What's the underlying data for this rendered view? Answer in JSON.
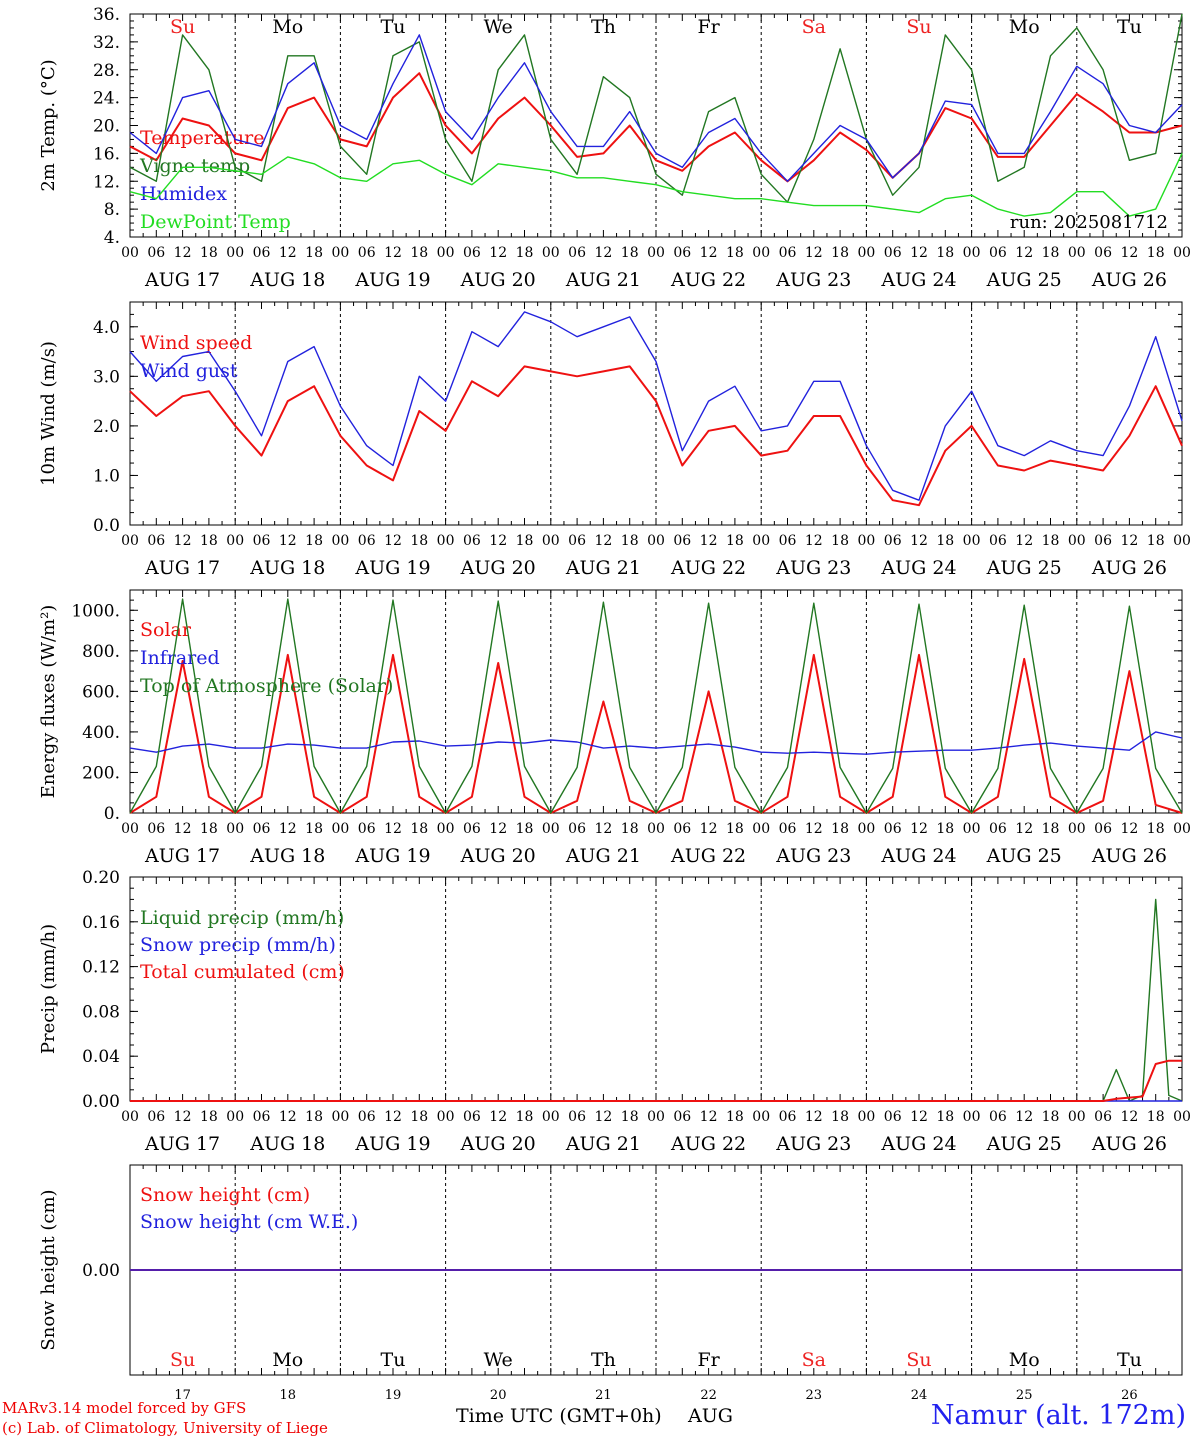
{
  "colors": {
    "red": "#ee1111",
    "green": "#227722",
    "blue": "#2222dd",
    "lightgreen": "#22dd22",
    "weekend": "#ee2222",
    "weekday": "#000000"
  },
  "days": [
    {
      "weekday": "Su",
      "date": "AUG 17",
      "daynum": "17",
      "weekend": true
    },
    {
      "weekday": "Mo",
      "date": "AUG 18",
      "daynum": "18",
      "weekend": false
    },
    {
      "weekday": "Tu",
      "date": "AUG 19",
      "daynum": "19",
      "weekend": false
    },
    {
      "weekday": "We",
      "date": "AUG 20",
      "daynum": "20",
      "weekend": false
    },
    {
      "weekday": "Th",
      "date": "AUG 21",
      "daynum": "21",
      "weekend": false
    },
    {
      "weekday": "Fr",
      "date": "AUG 22",
      "daynum": "22",
      "weekend": false
    },
    {
      "weekday": "Sa",
      "date": "AUG 23",
      "daynum": "23",
      "weekend": true
    },
    {
      "weekday": "Su",
      "date": "AUG 24",
      "daynum": "24",
      "weekend": true
    },
    {
      "weekday": "Mo",
      "date": "AUG 25",
      "daynum": "25",
      "weekend": false
    },
    {
      "weekday": "Tu",
      "date": "AUG 26",
      "daynum": "26",
      "weekend": false
    }
  ],
  "hour_ticks": [
    "00",
    "06",
    "12",
    "18"
  ],
  "final_hour_tick": "00",
  "footer": {
    "credit_line1": "MARv3.14 model forced by GFS",
    "credit_line2": "(c) Lab. of Climatology, University of Liege",
    "time_label": "Time UTC (GMT+0h)",
    "month": "AUG",
    "station": "Namur (alt. 172m)"
  },
  "chart_data": [
    {
      "type": "line",
      "ylabel": "2m Temp. (°C)",
      "ylim": [
        4,
        36
      ],
      "yticks": [
        "4.",
        "8.",
        "12.",
        "16.",
        "20.",
        "24.",
        "28.",
        "32.",
        "36."
      ],
      "annotation": "run: 2025081712",
      "x": [
        0,
        6,
        12,
        18,
        24,
        30,
        36,
        42,
        48,
        54,
        60,
        66,
        72,
        78,
        84,
        90,
        96,
        102,
        108,
        114,
        120,
        126,
        132,
        138,
        144,
        150,
        156,
        162,
        168,
        174,
        180,
        186,
        192,
        198,
        204,
        210,
        216,
        222,
        228,
        234,
        240
      ],
      "series": [
        {
          "name": "Temperature",
          "color": "red",
          "values": [
            17,
            15,
            21,
            20,
            16,
            15,
            22.5,
            24,
            18,
            17,
            24,
            27.5,
            20,
            16,
            21,
            24,
            20,
            15.5,
            16,
            20,
            15,
            13.5,
            17,
            19,
            15,
            12,
            15,
            19,
            16.5,
            12.5,
            16,
            22.5,
            21,
            15.5,
            15.5,
            20,
            24.5,
            22,
            19,
            19,
            20
          ]
        },
        {
          "name": "Vigne temp",
          "color": "green",
          "values": [
            14,
            12,
            33,
            28,
            14,
            12,
            30,
            30,
            17,
            13,
            30,
            32,
            18,
            12,
            28,
            33,
            18,
            13,
            27,
            24,
            13,
            10,
            22,
            24,
            13,
            9,
            18,
            31,
            18,
            10,
            14,
            33,
            28,
            12,
            14,
            30,
            34,
            28,
            15,
            16,
            36
          ]
        },
        {
          "name": "Humidex",
          "color": "blue",
          "values": [
            19,
            16,
            24,
            25,
            18,
            17,
            26,
            29,
            20,
            18,
            26,
            33,
            22,
            18,
            24,
            29,
            22,
            17,
            17,
            22,
            16,
            14,
            19,
            21,
            16,
            12,
            16,
            20,
            18,
            12.5,
            16,
            23.5,
            23,
            16,
            16,
            22,
            28.5,
            26,
            20,
            19,
            23
          ]
        },
        {
          "name": "DewPoint Temp",
          "color": "lightgreen",
          "values": [
            10.5,
            9.5,
            14,
            14,
            13.5,
            13,
            15.5,
            14.5,
            12.5,
            12,
            14.5,
            15,
            13,
            11.5,
            14.5,
            14,
            13.5,
            12.5,
            12.5,
            12,
            11.5,
            10.5,
            10,
            9.5,
            9.5,
            9,
            8.5,
            8.5,
            8.5,
            8,
            7.5,
            9.5,
            10,
            8,
            7,
            7.5,
            10.5,
            10.5,
            7,
            8,
            16
          ]
        }
      ]
    },
    {
      "type": "line",
      "ylabel": "10m Wind (m/s)",
      "ylim": [
        0,
        4.5
      ],
      "yticks": [
        "0.0",
        "1.0",
        "2.0",
        "3.0",
        "4.0"
      ],
      "x": [
        0,
        6,
        12,
        18,
        24,
        30,
        36,
        42,
        48,
        54,
        60,
        66,
        72,
        78,
        84,
        90,
        96,
        102,
        108,
        114,
        120,
        126,
        132,
        138,
        144,
        150,
        156,
        162,
        168,
        174,
        180,
        186,
        192,
        198,
        204,
        210,
        216,
        222,
        228,
        234,
        240
      ],
      "series": [
        {
          "name": "Wind speed",
          "color": "red",
          "values": [
            2.7,
            2.2,
            2.6,
            2.7,
            2.0,
            1.4,
            2.5,
            2.8,
            1.8,
            1.2,
            0.9,
            2.3,
            1.9,
            2.9,
            2.6,
            3.2,
            3.1,
            3.0,
            3.1,
            3.2,
            2.5,
            1.2,
            1.9,
            2.0,
            1.4,
            1.5,
            2.2,
            2.2,
            1.2,
            0.5,
            0.4,
            1.5,
            2.0,
            1.2,
            1.1,
            1.3,
            1.2,
            1.1,
            1.8,
            2.8,
            1.6
          ]
        },
        {
          "name": "Wind gust",
          "color": "blue",
          "values": [
            3.5,
            2.9,
            3.4,
            3.5,
            2.7,
            1.8,
            3.3,
            3.6,
            2.4,
            1.6,
            1.2,
            3.0,
            2.5,
            3.9,
            3.6,
            4.3,
            4.1,
            3.8,
            4.0,
            4.2,
            3.3,
            1.5,
            2.5,
            2.8,
            1.9,
            2.0,
            2.9,
            2.9,
            1.6,
            0.7,
            0.5,
            2.0,
            2.7,
            1.6,
            1.4,
            1.7,
            1.5,
            1.4,
            2.4,
            3.8,
            2.1
          ]
        }
      ]
    },
    {
      "type": "line",
      "ylabel": "Energy fluxes (W/m²)",
      "ylim": [
        0,
        1100
      ],
      "yticks": [
        "0.",
        "200.",
        "400.",
        "600.",
        "800.",
        "1000."
      ],
      "x": [
        0,
        6,
        12,
        18,
        24,
        30,
        36,
        42,
        48,
        54,
        60,
        66,
        72,
        78,
        84,
        90,
        96,
        102,
        108,
        114,
        120,
        126,
        132,
        138,
        144,
        150,
        156,
        162,
        168,
        174,
        180,
        186,
        192,
        198,
        204,
        210,
        216,
        222,
        228,
        234,
        240
      ],
      "series": [
        {
          "name": "Solar",
          "color": "red",
          "values": [
            0,
            80,
            750,
            80,
            0,
            80,
            780,
            80,
            0,
            80,
            780,
            80,
            0,
            80,
            740,
            80,
            0,
            60,
            550,
            60,
            0,
            60,
            600,
            60,
            0,
            80,
            780,
            80,
            0,
            80,
            780,
            80,
            0,
            80,
            760,
            80,
            0,
            60,
            700,
            40,
            0
          ]
        },
        {
          "name": "Infrared",
          "color": "blue",
          "values": [
            320,
            300,
            330,
            340,
            320,
            320,
            340,
            335,
            320,
            320,
            350,
            355,
            330,
            335,
            350,
            345,
            360,
            350,
            320,
            330,
            320,
            330,
            340,
            325,
            300,
            295,
            300,
            295,
            290,
            300,
            305,
            310,
            310,
            320,
            335,
            345,
            330,
            320,
            310,
            400,
            370
          ]
        },
        {
          "name": "Top of Atmosphere (Solar)",
          "color": "green",
          "values": [
            0,
            230,
            1055,
            230,
            0,
            230,
            1055,
            230,
            0,
            230,
            1050,
            230,
            0,
            230,
            1045,
            230,
            0,
            225,
            1040,
            225,
            0,
            225,
            1035,
            225,
            0,
            225,
            1035,
            225,
            0,
            220,
            1030,
            220,
            0,
            220,
            1025,
            220,
            0,
            220,
            1020,
            220,
            0
          ]
        }
      ]
    },
    {
      "type": "line",
      "ylabel": "Precip (mm/h)",
      "ylim": [
        0,
        0.2
      ],
      "yticks": [
        "0.00",
        "0.04",
        "0.08",
        "0.12",
        "0.16",
        "0.20"
      ],
      "x": [
        0,
        216,
        222,
        225,
        228,
        231,
        234,
        237,
        240
      ],
      "series": [
        {
          "name": "Liquid precip (mm/h)",
          "color": "green",
          "values": [
            0,
            0,
            0,
            0.028,
            0,
            0.005,
            0.18,
            0.005,
            0
          ]
        },
        {
          "name": "Snow precip (mm/h)",
          "color": "blue",
          "values": [
            0,
            0,
            0,
            0,
            0,
            0,
            0,
            0,
            0
          ]
        },
        {
          "name": "Total cumulated (cm)",
          "color": "red",
          "values": [
            0,
            0,
            0,
            0.002,
            0.003,
            0.004,
            0.033,
            0.036,
            0.036
          ]
        }
      ]
    },
    {
      "type": "line",
      "ylabel": "Snow height (cm)",
      "ylim": [
        -1,
        1
      ],
      "yticks": [
        "0.00"
      ],
      "x": [
        0,
        240
      ],
      "series": [
        {
          "name": "Snow height (cm)",
          "color": "red",
          "values": [
            0,
            0
          ]
        },
        {
          "name": "Snow height (cm W.E.)",
          "color": "blue",
          "values": [
            0,
            0
          ]
        }
      ]
    }
  ]
}
